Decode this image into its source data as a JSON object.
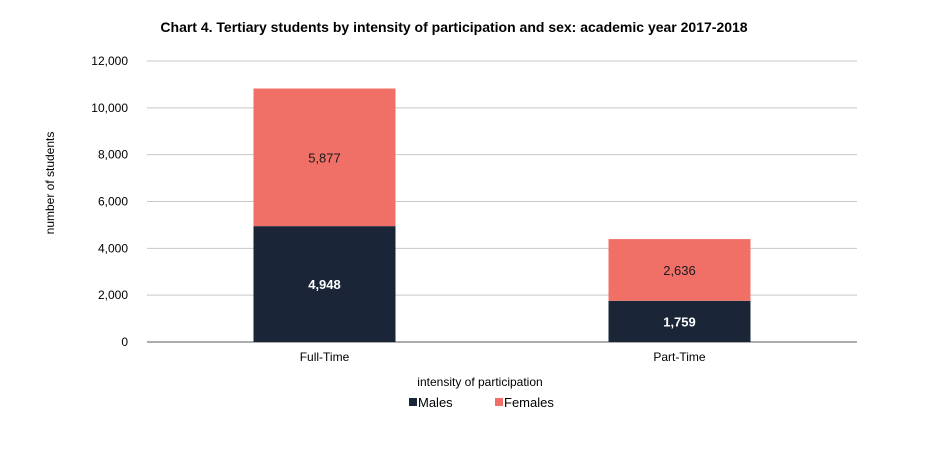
{
  "chart_data": {
    "type": "bar",
    "stacked": true,
    "title": "Chart 4. Tertiary students by intensity of participation and sex: academic year 2017-2018",
    "xlabel": "intensity of participation",
    "ylabel": "number of students",
    "categories": [
      "Full-Time",
      "Part-Time"
    ],
    "series": [
      {
        "name": "Males",
        "color": "#1a2638",
        "label_color": "#ffffff",
        "values": [
          4948,
          1759
        ],
        "labels": [
          "4,948",
          "1,759"
        ]
      },
      {
        "name": "Females",
        "color": "#f07068",
        "label_color": "#1a1a1a",
        "values": [
          5877,
          2636
        ],
        "labels": [
          "5,877",
          "2,636"
        ]
      }
    ],
    "ylim": [
      0,
      12000
    ],
    "yticks": [
      0,
      2000,
      4000,
      6000,
      8000,
      10000,
      12000
    ],
    "ytick_labels": [
      "0",
      "2,000",
      "4,000",
      "6,000",
      "8,000",
      "10,000",
      "12,000"
    ],
    "grid": true,
    "grid_color": "#c8c8c8",
    "legend_position": "bottom"
  }
}
